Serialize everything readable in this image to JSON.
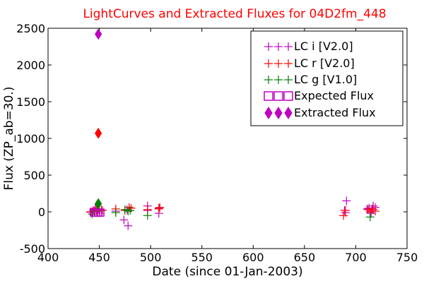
{
  "chart_data": {
    "type": "scatter",
    "title": "LightCurves and Extracted Fluxes for 04D2fm_448",
    "xlabel": "Date (since 01-Jan-2003)",
    "ylabel": "Flux (ZP_ab=30.)",
    "xlim": [
      400,
      750
    ],
    "ylim": [
      -500,
      2500
    ],
    "xticks": [
      "400",
      "450",
      "500",
      "550",
      "600",
      "650",
      "700",
      "750"
    ],
    "yticks": [
      "-500",
      "0",
      "500",
      "1000",
      "1500",
      "2000",
      "2500"
    ],
    "legend_position": "top-right",
    "colors": {
      "title": "#ff0000",
      "i": "#bf00bf",
      "r": "#ff0000",
      "g": "#008000",
      "expected": "#bf00bf"
    },
    "series": [
      {
        "name": "LC i [V2.0]",
        "band": "i",
        "marker": "plus",
        "points": [
          [
            441,
            -5
          ],
          [
            444,
            20
          ],
          [
            446,
            50
          ],
          [
            449,
            30
          ],
          [
            452,
            25
          ],
          [
            466,
            10
          ],
          [
            474,
            -110
          ],
          [
            477,
            30
          ],
          [
            478,
            -190
          ],
          [
            497,
            80
          ],
          [
            497,
            20
          ],
          [
            508,
            50
          ],
          [
            508,
            -20
          ],
          [
            689,
            20
          ],
          [
            690,
            -10
          ],
          [
            691,
            150
          ],
          [
            711,
            40
          ],
          [
            713,
            50
          ],
          [
            715,
            -20
          ],
          [
            717,
            30
          ],
          [
            717,
            80
          ],
          [
            719,
            60
          ]
        ]
      },
      {
        "name": "LC r [V2.0]",
        "band": "r",
        "marker": "plus",
        "points": [
          [
            442,
            0
          ],
          [
            445,
            10
          ],
          [
            447,
            30
          ],
          [
            450,
            20
          ],
          [
            453,
            20
          ],
          [
            466,
            40
          ],
          [
            475,
            20
          ],
          [
            479,
            60
          ],
          [
            481,
            50
          ],
          [
            497,
            30
          ],
          [
            508,
            40
          ],
          [
            509,
            60
          ],
          [
            688,
            -50
          ],
          [
            690,
            20
          ],
          [
            712,
            30
          ],
          [
            714,
            0
          ],
          [
            716,
            40
          ],
          [
            719,
            10
          ]
        ]
      },
      {
        "name": "LC g [V1.0]",
        "band": "g",
        "marker": "plus",
        "points": [
          [
            443,
            -30
          ],
          [
            448,
            10
          ],
          [
            466,
            -10
          ],
          [
            475,
            30
          ],
          [
            478,
            10
          ],
          [
            480,
            20
          ],
          [
            497,
            -50
          ],
          [
            714,
            -70
          ]
        ]
      },
      {
        "name": "Expected Flux",
        "band": "i",
        "marker": "square-open",
        "points": [
          [
            445,
            -10
          ],
          [
            447,
            -10
          ],
          [
            449,
            -10
          ],
          [
            451,
            -10
          ]
        ]
      },
      {
        "name": "Extracted Flux",
        "band": "multi",
        "marker": "diamond",
        "points": [
          {
            "x": 449,
            "y": 2420,
            "color": "#bf00bf"
          },
          {
            "x": 449,
            "y": 1070,
            "color": "#ff0000"
          },
          {
            "x": 449,
            "y": 110,
            "color": "#008000"
          }
        ]
      }
    ]
  }
}
